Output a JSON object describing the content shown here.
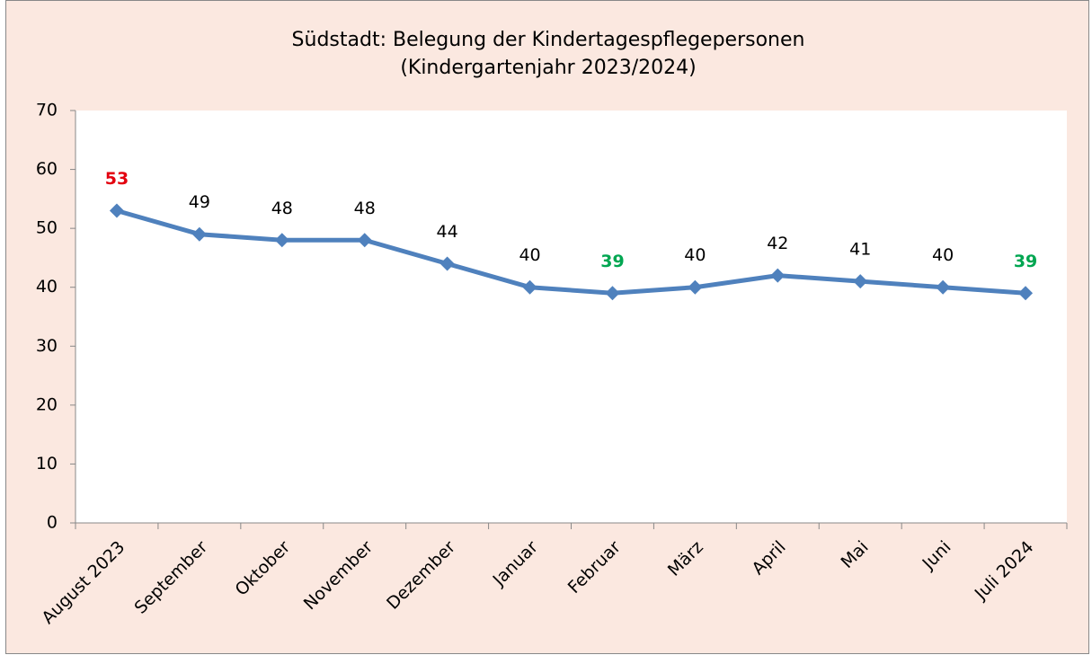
{
  "chart_data": {
    "type": "line",
    "title": "Südstadt: Belegung der Kindertagespflegepersonen",
    "subtitle": "(Kindergartenjahr 2023/2024)",
    "categories": [
      "August 2023",
      "September",
      "Oktober",
      "November",
      "Dezember",
      "Januar",
      "Februar",
      "März",
      "April",
      "Mai",
      "Juni",
      "Juli 2024"
    ],
    "series": [
      {
        "name": "Belegung",
        "color": "#4f81bd",
        "values": [
          53,
          49,
          48,
          48,
          44,
          40,
          39,
          40,
          42,
          41,
          40,
          39
        ],
        "label_colors": [
          "#e3000f",
          "#000000",
          "#000000",
          "#000000",
          "#000000",
          "#000000",
          "#00a651",
          "#000000",
          "#000000",
          "#000000",
          "#000000",
          "#00a651"
        ]
      }
    ],
    "ylim": [
      0,
      70
    ],
    "yticks": [
      0,
      10,
      20,
      30,
      40,
      50,
      60,
      70
    ],
    "grid": false,
    "background": "#fbe8e0",
    "plot_background": "#ffffff"
  }
}
